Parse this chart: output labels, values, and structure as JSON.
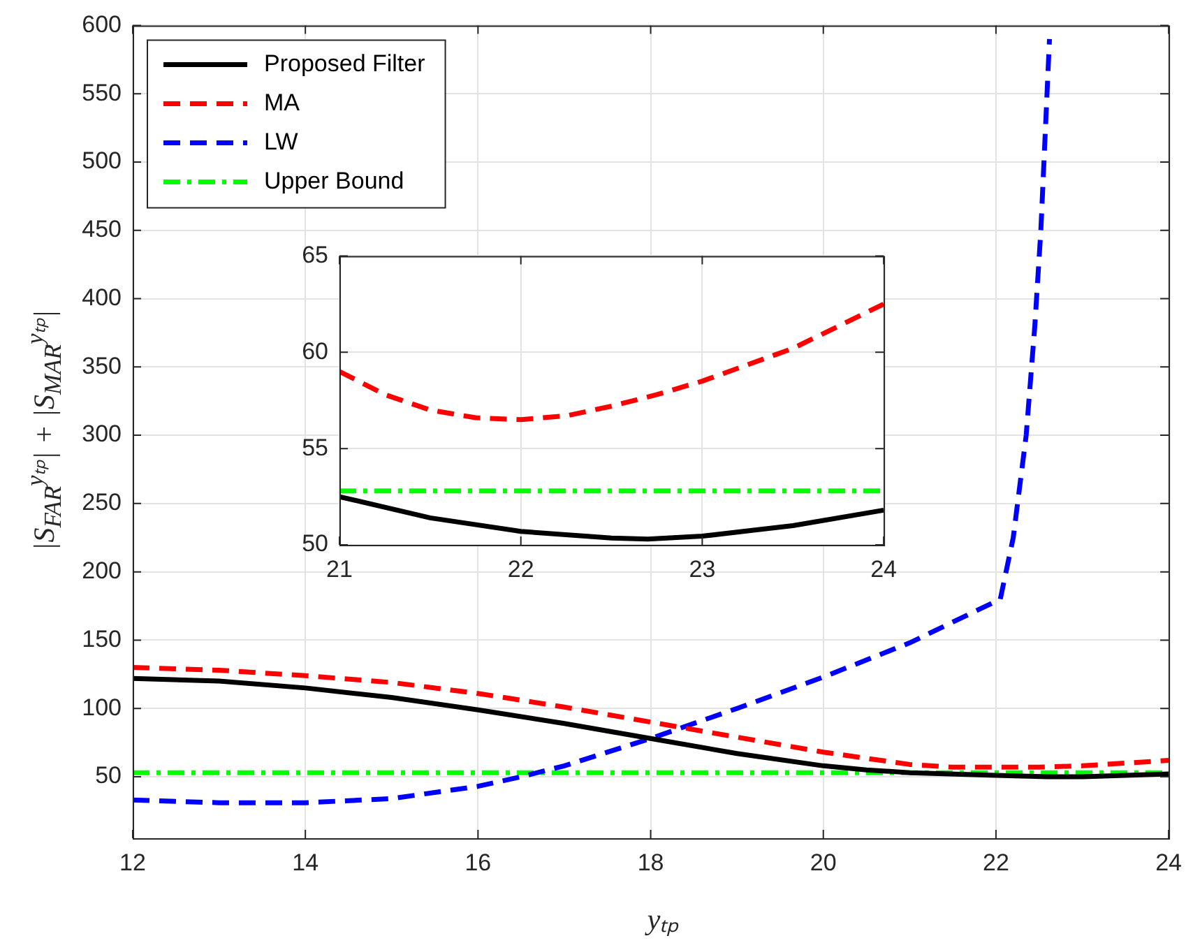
{
  "chart_data": [
    {
      "type": "line",
      "xlabel": "yₜₚ",
      "ylabel": "|S$_{FAR}$$^{yₜₚ}$| + |S$_{MAR}$$^{yₜₚ}$|",
      "xlim": [
        12,
        24
      ],
      "xticks": [
        12,
        14,
        16,
        18,
        20,
        22,
        24
      ],
      "ylim": [
        5,
        600
      ],
      "yticks": [
        50,
        100,
        150,
        200,
        250,
        300,
        350,
        400,
        450,
        500,
        550,
        600
      ],
      "grid": true,
      "legend": "top left",
      "series": [
        {
          "name": "Proposed Filter",
          "color": "#000000",
          "line_style": "solid",
          "x": [
            12,
            13,
            14,
            15,
            16,
            17,
            18,
            19,
            20,
            20.5,
            21,
            22,
            22.6,
            23,
            24
          ],
          "values": [
            122,
            120,
            115,
            108,
            99,
            89,
            78,
            67,
            58,
            55,
            53,
            51,
            50,
            50,
            52
          ]
        },
        {
          "name": "MA",
          "color": "#ff0000",
          "line_style": "dashed",
          "x": [
            12,
            13,
            14,
            15,
            16,
            17,
            18,
            19,
            20,
            21,
            21.5,
            22,
            22.5,
            23,
            23.5,
            24
          ],
          "values": [
            130,
            128,
            124,
            119,
            111,
            101,
            90,
            79,
            68,
            59,
            57,
            57,
            57,
            58,
            60,
            62
          ]
        },
        {
          "name": "LW",
          "color": "#0000ff",
          "line_style": "dashed",
          "x": [
            12,
            13,
            14,
            15,
            16,
            16.5,
            17,
            18,
            19,
            20,
            21,
            22.05,
            22.2,
            22.35,
            22.45,
            22.52,
            22.57,
            22.62
          ],
          "values": [
            33,
            31,
            31,
            34,
            43,
            50,
            58,
            78,
            100,
            123,
            148,
            180,
            225,
            300,
            380,
            450,
            520,
            590
          ]
        },
        {
          "name": "Upper Bound",
          "color": "#00ff00",
          "line_style": "dashdot",
          "x": [
            12,
            24
          ],
          "values": [
            53,
            53
          ]
        }
      ]
    },
    {
      "type": "line",
      "xlim": [
        21,
        24
      ],
      "xticks": [
        21,
        22,
        23,
        24
      ],
      "ylim": [
        50,
        65
      ],
      "yticks": [
        50,
        55,
        60,
        65
      ],
      "grid": true,
      "series": [
        {
          "color": "#000000",
          "line_style": "solid",
          "x": [
            21,
            21.5,
            22,
            22.5,
            22.7,
            23,
            23.5,
            24
          ],
          "values": [
            52.5,
            51.4,
            50.7,
            50.35,
            50.3,
            50.45,
            51,
            51.8
          ]
        },
        {
          "color": "#ff0000",
          "line_style": "dashed",
          "x": [
            21,
            21.25,
            21.5,
            21.75,
            22,
            22.25,
            22.5,
            22.75,
            23,
            23.5,
            24
          ],
          "values": [
            59,
            57.8,
            57,
            56.6,
            56.5,
            56.7,
            57.2,
            57.8,
            58.5,
            60.2,
            62.5
          ]
        },
        {
          "color": "#00ff00",
          "line_style": "dashdot",
          "x": [
            21,
            24
          ],
          "values": [
            52.8,
            52.8
          ]
        }
      ]
    }
  ]
}
